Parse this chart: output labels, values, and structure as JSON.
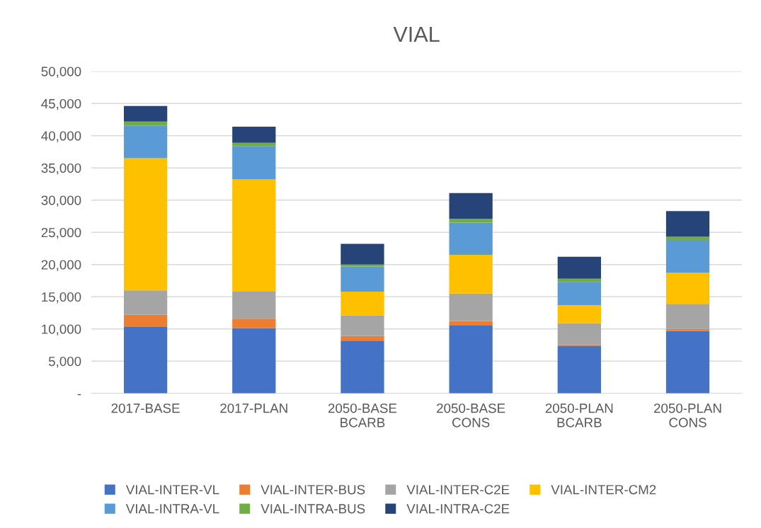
{
  "chart_data": {
    "type": "bar",
    "title": "VIAL",
    "stacked": true,
    "categories": [
      "2017-BASE",
      "2017-PLAN",
      "2050-BASE\nBCARB",
      "2050-BASE\nCONS",
      "2050-PLAN\nBCARB",
      "2050-PLAN\nCONS"
    ],
    "series": [
      {
        "name": "VIAL-INTER-VL",
        "color": "#4472c4",
        "values": [
          10300,
          10100,
          8200,
          10600,
          7400,
          9700
        ]
      },
      {
        "name": "VIAL-INTER-BUS",
        "color": "#ed7d31",
        "values": [
          1900,
          1500,
          700,
          600,
          200,
          300
        ]
      },
      {
        "name": "VIAL-INTER-C2E",
        "color": "#a5a5a5",
        "values": [
          3800,
          4200,
          3200,
          4300,
          3300,
          3900
        ]
      },
      {
        "name": "VIAL-INTER-CM2",
        "color": "#ffc000",
        "values": [
          20500,
          17400,
          3700,
          6000,
          2800,
          4800
        ]
      },
      {
        "name": "VIAL-INTRA-VL",
        "color": "#5b9bd5",
        "values": [
          5100,
          5200,
          3900,
          5000,
          3600,
          5000
        ]
      },
      {
        "name": "VIAL-INTRA-BUS",
        "color": "#70ad47",
        "values": [
          600,
          500,
          300,
          600,
          500,
          600
        ]
      },
      {
        "name": "VIAL-INTRA-C2E",
        "color": "#264478",
        "values": [
          2400,
          2500,
          3200,
          4000,
          3400,
          4000
        ]
      }
    ],
    "ylim": [
      0,
      50000
    ],
    "yticks": [
      {
        "value": 0,
        "label": "-"
      },
      {
        "value": 5000,
        "label": "5,000"
      },
      {
        "value": 10000,
        "label": "10,000"
      },
      {
        "value": 15000,
        "label": "15,000"
      },
      {
        "value": 20000,
        "label": "20,000"
      },
      {
        "value": 25000,
        "label": "25,000"
      },
      {
        "value": 30000,
        "label": "30,000"
      },
      {
        "value": 35000,
        "label": "35,000"
      },
      {
        "value": 40000,
        "label": "40,000"
      },
      {
        "value": 45000,
        "label": "45,000"
      },
      {
        "value": 50000,
        "label": "50,000"
      }
    ],
    "grid": "y",
    "legend": "bottom"
  }
}
